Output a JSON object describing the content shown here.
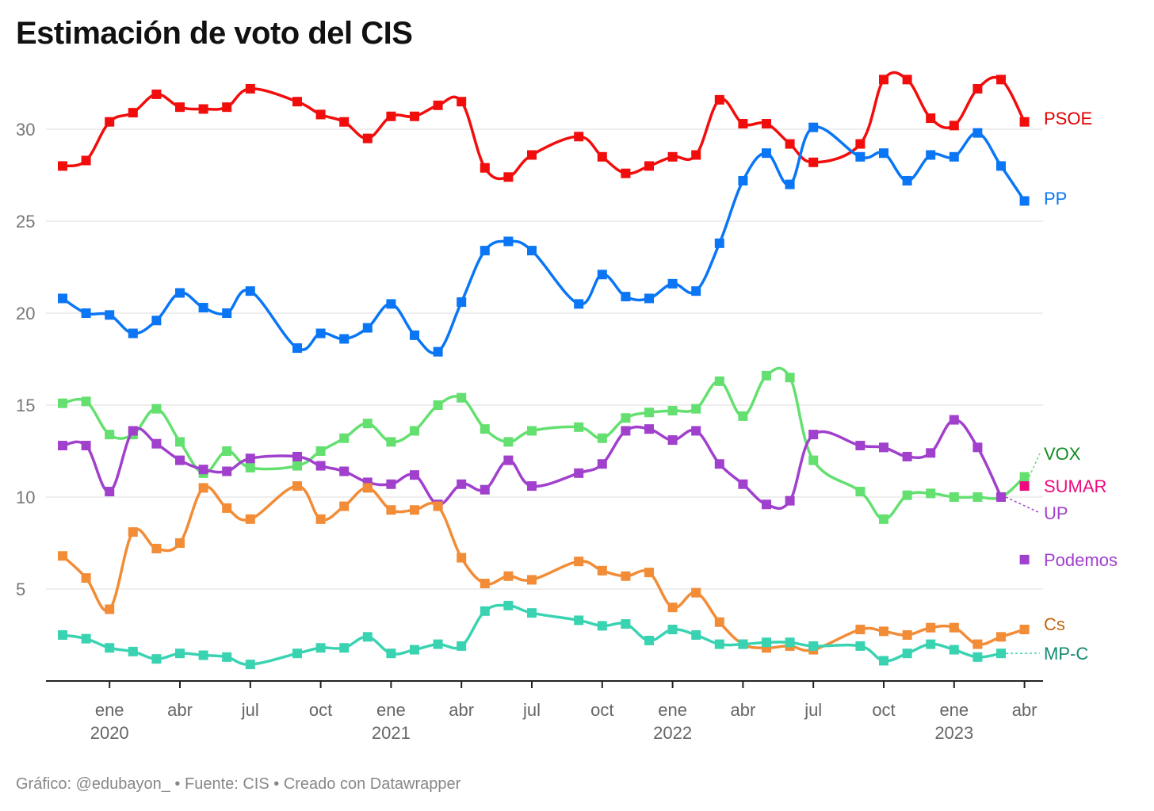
{
  "chart_data": {
    "type": "line",
    "title": "Estimación de voto del CIS",
    "footer": "Gráfico: @edubayon_ • Fuente: CIS • Creado con Datawrapper",
    "ylim": [
      0,
      33
    ],
    "yticks": [
      5,
      10,
      15,
      20,
      25,
      30
    ],
    "grid": true,
    "x_start": "nov 2019",
    "x_unit": "months since nov 2019",
    "xticks": [
      {
        "m": 2,
        "label": "ene",
        "year": "2020"
      },
      {
        "m": 5,
        "label": "abr",
        "year": ""
      },
      {
        "m": 8,
        "label": "jul",
        "year": ""
      },
      {
        "m": 11,
        "label": "oct",
        "year": ""
      },
      {
        "m": 14,
        "label": "ene",
        "year": "2021"
      },
      {
        "m": 17,
        "label": "abr",
        "year": ""
      },
      {
        "m": 20,
        "label": "jul",
        "year": ""
      },
      {
        "m": 23,
        "label": "oct",
        "year": ""
      },
      {
        "m": 26,
        "label": "ene",
        "year": "2022"
      },
      {
        "m": 29,
        "label": "abr",
        "year": ""
      },
      {
        "m": 32,
        "label": "jul",
        "year": ""
      },
      {
        "m": 35,
        "label": "oct",
        "year": ""
      },
      {
        "m": 38,
        "label": "ene",
        "year": "2023"
      },
      {
        "m": 41,
        "label": "abr",
        "year": ""
      }
    ],
    "x": [
      0,
      1,
      2,
      3,
      4,
      5,
      6,
      7,
      8,
      10,
      11,
      12,
      13,
      14,
      15,
      16,
      17,
      18,
      19,
      20,
      22,
      23,
      24,
      25,
      26,
      27,
      28,
      29,
      30,
      31,
      32,
      34,
      35,
      36,
      37,
      38,
      39,
      40,
      41
    ],
    "series": [
      {
        "name": "PSOE",
        "color": "#f20d0d",
        "label_color": "#e00000",
        "values": [
          28.0,
          28.3,
          30.4,
          30.9,
          31.9,
          31.2,
          31.1,
          31.2,
          32.2,
          31.5,
          30.8,
          30.4,
          29.5,
          30.7,
          30.7,
          31.3,
          31.5,
          27.9,
          27.4,
          28.6,
          29.6,
          28.5,
          27.6,
          28.0,
          28.5,
          28.6,
          31.6,
          30.3,
          30.3,
          29.2,
          28.2,
          29.2,
          32.7,
          32.7,
          30.6,
          30.2,
          32.2,
          32.7,
          30.4
        ]
      },
      {
        "name": "PP",
        "color": "#0a76f5",
        "label_color": "#0a76f5",
        "values": [
          20.8,
          20.0,
          19.9,
          18.9,
          19.6,
          21.1,
          20.3,
          20.0,
          21.2,
          18.1,
          18.9,
          18.6,
          19.2,
          20.5,
          18.8,
          17.9,
          20.6,
          23.4,
          23.9,
          23.4,
          20.5,
          22.1,
          20.9,
          20.8,
          21.6,
          21.2,
          23.8,
          27.2,
          28.7,
          27.0,
          30.1,
          28.5,
          28.7,
          27.2,
          28.6,
          28.5,
          29.8,
          28.0,
          26.1
        ]
      },
      {
        "name": "VOX",
        "color": "#63e06f",
        "label_color": "#118a24",
        "values": [
          15.1,
          15.2,
          13.4,
          13.4,
          14.8,
          13.0,
          11.3,
          12.5,
          11.6,
          11.7,
          12.5,
          13.2,
          14.0,
          13.0,
          13.6,
          15.0,
          15.4,
          13.7,
          13.0,
          13.6,
          13.8,
          13.2,
          14.3,
          14.6,
          14.7,
          14.8,
          16.3,
          14.4,
          16.6,
          16.5,
          12.0,
          10.3,
          8.8,
          10.1,
          10.2,
          10.0,
          10.0,
          10.0,
          11.1
        ]
      },
      {
        "name": "UP",
        "color": "#a040cc",
        "label_color": "#a040cc",
        "values": [
          12.8,
          12.8,
          10.3,
          13.6,
          12.9,
          12.0,
          11.5,
          11.4,
          12.1,
          12.2,
          11.7,
          11.4,
          10.8,
          10.7,
          11.2,
          9.6,
          10.7,
          10.4,
          12.0,
          10.6,
          11.3,
          11.8,
          13.6,
          13.7,
          13.1,
          13.6,
          11.8,
          10.7,
          9.6,
          9.8,
          13.4,
          12.8,
          12.7,
          12.2,
          12.4,
          14.2,
          12.7,
          10.0,
          null
        ]
      },
      {
        "name": "Cs",
        "color": "#f28c36",
        "label_color": "#c0650f",
        "values": [
          6.8,
          5.6,
          3.9,
          8.1,
          7.2,
          7.5,
          10.5,
          9.4,
          8.8,
          10.6,
          8.8,
          9.5,
          10.5,
          9.3,
          9.3,
          9.5,
          6.7,
          5.3,
          5.7,
          5.5,
          6.5,
          6.0,
          5.7,
          5.9,
          4.0,
          4.8,
          3.2,
          2.0,
          1.8,
          1.9,
          1.7,
          2.8,
          2.7,
          2.5,
          2.9,
          2.9,
          2.0,
          2.4,
          2.8
        ]
      },
      {
        "name": "MP-C",
        "color": "#3ad3b2",
        "label_color": "#0f8a6e",
        "values": [
          2.5,
          2.3,
          1.8,
          1.6,
          1.2,
          1.5,
          1.4,
          1.3,
          0.9,
          1.5,
          1.8,
          1.8,
          2.4,
          1.5,
          1.7,
          2.0,
          1.9,
          3.8,
          4.1,
          3.7,
          3.3,
          3.0,
          3.1,
          2.2,
          2.8,
          2.5,
          2.0,
          2.0,
          2.1,
          2.1,
          1.9,
          1.9,
          1.1,
          1.5,
          2.0,
          1.7,
          1.3,
          1.5,
          null
        ]
      }
    ],
    "single_points": [
      {
        "name": "SUMAR",
        "x": 41,
        "value": 10.6,
        "color": "#f00a80"
      },
      {
        "name": "Podemos",
        "x": 41,
        "value": 6.6,
        "color": "#a040cc"
      }
    ]
  }
}
